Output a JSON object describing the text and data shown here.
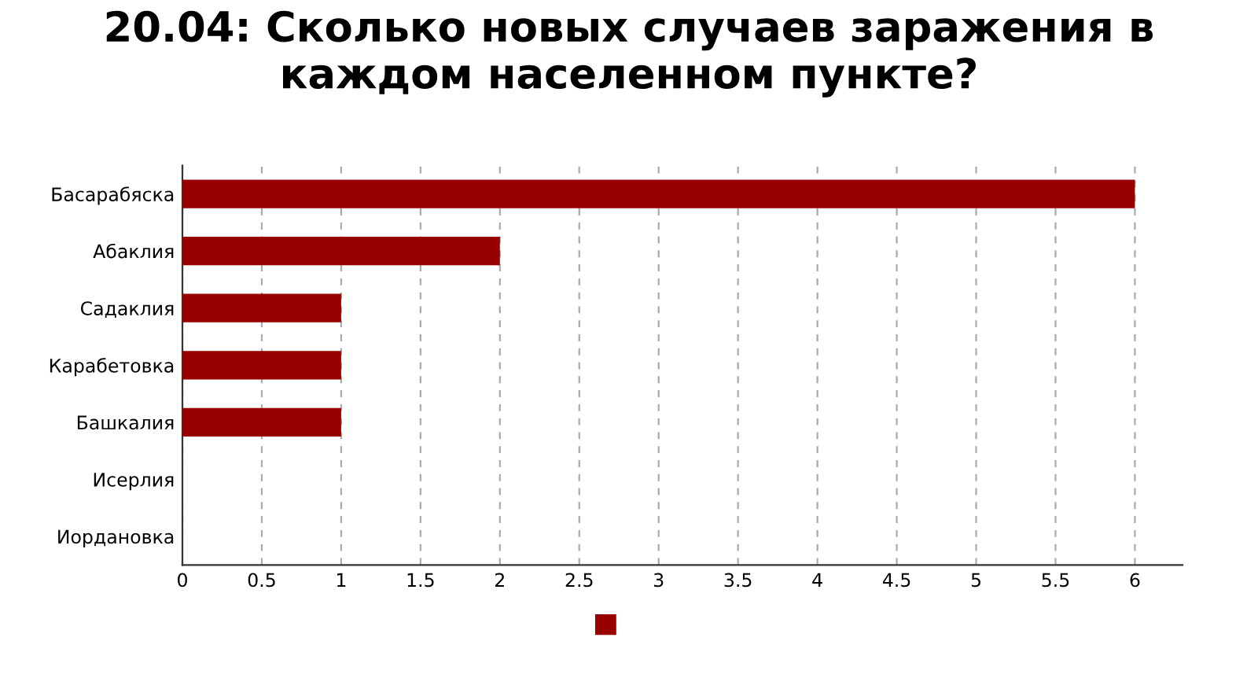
{
  "chart_data": {
    "type": "bar",
    "orientation": "horizontal",
    "title": "20.04: Сколько новых случаев заражения в каждом населенном пункте?",
    "categories": [
      "Басарабяска",
      "Абаклия",
      "Садаклия",
      "Карабетовка",
      "Башкалия",
      "Исерлия",
      "Иордановка"
    ],
    "values": [
      6,
      2,
      1,
      1,
      1,
      0,
      0
    ],
    "color": "#990000",
    "xlim": [
      0,
      6.3
    ],
    "xticks": [
      0,
      0.5,
      1,
      1.5,
      2,
      2.5,
      3,
      3.5,
      4,
      4.5,
      5,
      5.5,
      6
    ],
    "grid": "x"
  }
}
